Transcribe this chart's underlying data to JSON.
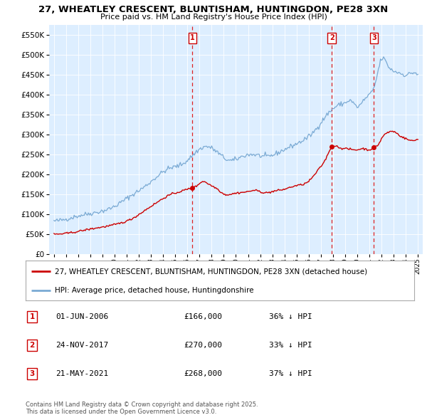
{
  "title_line1": "27, WHEATLEY CRESCENT, BLUNTISHAM, HUNTINGDON, PE28 3XN",
  "title_line2": "Price paid vs. HM Land Registry's House Price Index (HPI)",
  "ytick_values": [
    0,
    50000,
    100000,
    150000,
    200000,
    250000,
    300000,
    350000,
    400000,
    450000,
    500000,
    550000
  ],
  "ylim": [
    0,
    575000
  ],
  "year_start": 1995,
  "year_end": 2025,
  "sale_events": [
    {
      "date": "01-JUN-2006",
      "price": 166000,
      "label": "1",
      "year_float": 2006.42
    },
    {
      "date": "24-NOV-2017",
      "price": 270000,
      "label": "2",
      "year_float": 2017.9
    },
    {
      "date": "21-MAY-2021",
      "price": 268000,
      "label": "3",
      "year_float": 2021.38
    }
  ],
  "hpi_color": "#7aaad4",
  "price_color": "#cc0000",
  "background_color": "#ddeeff",
  "legend_address": "27, WHEATLEY CRESCENT, BLUNTISHAM, HUNTINGDON, PE28 3XN (detached house)",
  "legend_hpi": "HPI: Average price, detached house, Huntingdonshire",
  "table_rows": [
    {
      "num": "1",
      "date": "01-JUN-2006",
      "price": "£166,000",
      "pct": "36% ↓ HPI"
    },
    {
      "num": "2",
      "date": "24-NOV-2017",
      "price": "£270,000",
      "pct": "33% ↓ HPI"
    },
    {
      "num": "3",
      "date": "21-MAY-2021",
      "price": "£268,000",
      "pct": "37% ↓ HPI"
    }
  ],
  "footnote": "Contains HM Land Registry data © Crown copyright and database right 2025.\nThis data is licensed under the Open Government Licence v3.0."
}
